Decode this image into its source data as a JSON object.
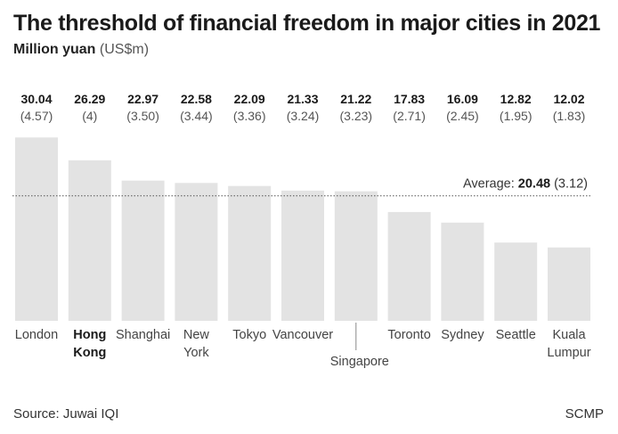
{
  "title": "The threshold of financial freedom in major cities in 2021",
  "subtitle": {
    "unit_main": "Million yuan",
    "unit_alt": "(US$m)"
  },
  "source": "Source: Juwai IQI",
  "credit": "SCMP",
  "colors": {
    "bar": "#e3e3e3",
    "average_line": "#555555",
    "text": "#222222"
  },
  "chart_data": {
    "type": "bar",
    "ylabel": "Million yuan",
    "ylim": [
      0,
      32
    ],
    "categories": [
      "London",
      "Hong Kong",
      "Shanghai",
      "New York",
      "Tokyo",
      "Vancouver",
      "Singapore",
      "Toronto",
      "Sydney",
      "Seattle",
      "Kuala Lumpur"
    ],
    "label_lines": [
      [
        "London"
      ],
      [
        "Hong",
        "Kong"
      ],
      [
        "Shanghai"
      ],
      [
        "New",
        "York"
      ],
      [
        "Tokyo"
      ],
      [
        "Vancouver"
      ],
      [
        "Singapore"
      ],
      [
        "Toronto"
      ],
      [
        "Sydney"
      ],
      [
        "Seattle"
      ],
      [
        "Kuala",
        "Lumpur"
      ]
    ],
    "highlight": "Hong Kong",
    "series": [
      {
        "values": [
          30.04,
          26.29,
          22.97,
          22.58,
          22.09,
          21.33,
          21.22,
          17.83,
          16.09,
          12.82,
          12.02
        ]
      }
    ],
    "value_labels": [
      "30.04",
      "26.29",
      "22.97",
      "22.58",
      "22.09",
      "21.33",
      "21.22",
      "17.83",
      "16.09",
      "12.82",
      "12.02"
    ],
    "usd_labels": [
      "(4.57)",
      "(4)",
      "(3.50)",
      "(3.44)",
      "(3.36)",
      "(3.24)",
      "(3.23)",
      "(2.71)",
      "(2.45)",
      "(1.95)",
      "(1.83)"
    ],
    "average": {
      "label": "Average:",
      "value": 20.48,
      "value_label": "20.48",
      "usd_label": "(3.12)"
    },
    "offset_label": "Singapore",
    "grid": false,
    "legend": "none"
  }
}
